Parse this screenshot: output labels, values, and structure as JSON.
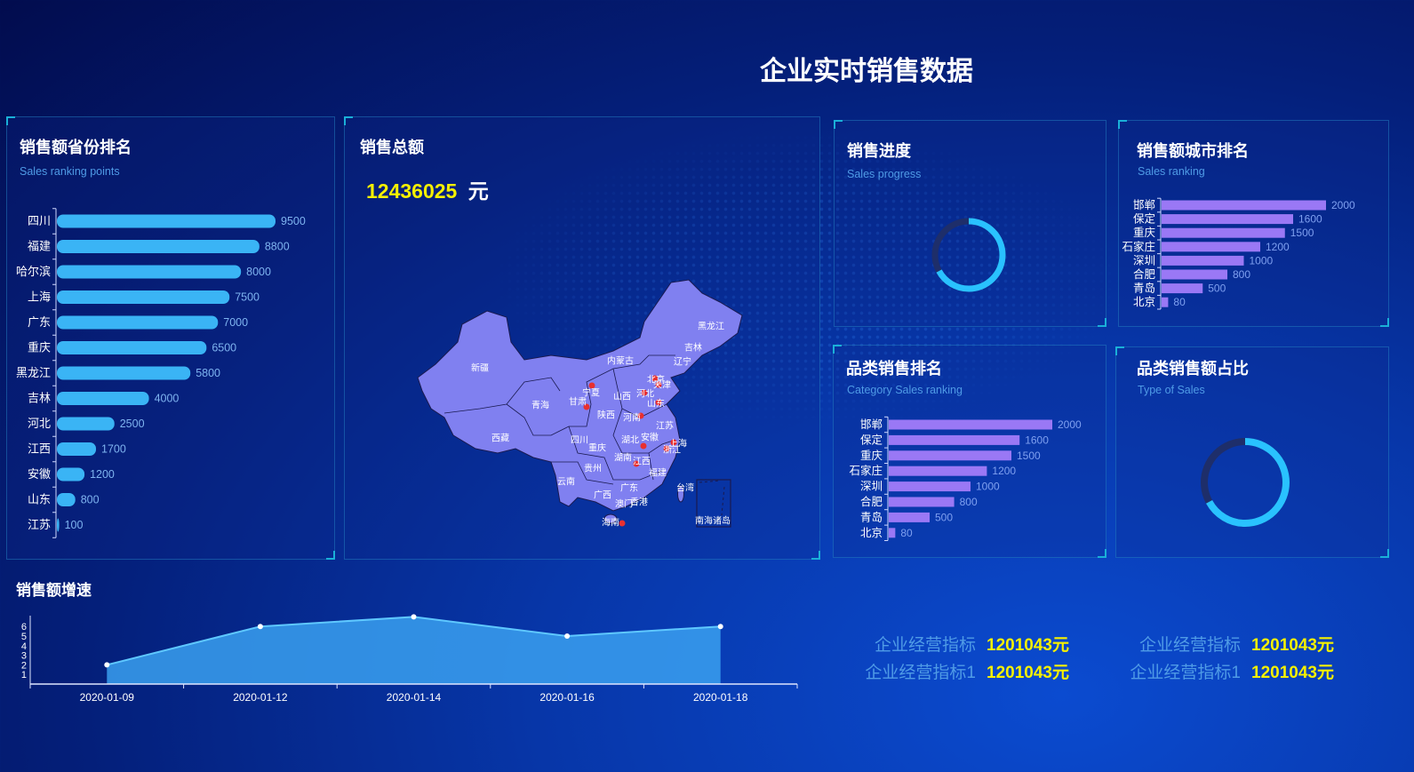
{
  "header": {
    "title": "企业实时销售数据"
  },
  "province_ranking": {
    "title": "销售额省份排名",
    "subtitle": "Sales ranking points",
    "chart_data": {
      "type": "bar",
      "orientation": "horizontal",
      "categories": [
        "四川",
        "福建",
        "哈尔滨",
        "上海",
        "广东",
        "重庆",
        "黑龙江",
        "吉林",
        "河北",
        "江西",
        "安徽",
        "山东",
        "江苏"
      ],
      "values": [
        9500,
        8800,
        8000,
        7500,
        7000,
        6500,
        5800,
        4000,
        2500,
        1700,
        1200,
        800,
        100
      ],
      "color": "#3ab4f5"
    }
  },
  "total_sales": {
    "title": "销售总额",
    "value": "12436025",
    "unit": "元",
    "map_labels": [
      "新疆",
      "西藏",
      "青海",
      "甘肃",
      "宁夏",
      "内蒙古",
      "山西",
      "陕西",
      "四川",
      "重庆",
      "云南",
      "贵州",
      "广西",
      "广东",
      "香港",
      "澳门",
      "海南",
      "湖南",
      "湖北",
      "河南",
      "河北",
      "北京",
      "天津",
      "山东",
      "江苏",
      "安徽",
      "上海",
      "浙江",
      "江西",
      "福建",
      "台湾",
      "辽宁",
      "吉林",
      "黑龙江",
      "南海诸岛"
    ],
    "map_fill": "#8080f0",
    "marker_color": "#e83030"
  },
  "sales_progress": {
    "title": "销售进度",
    "subtitle": "Sales progress",
    "chart_data": {
      "type": "pie",
      "variant": "donut",
      "value": 0.67,
      "color": "#29c2ff",
      "track": "#1e2e6a"
    }
  },
  "city_ranking": {
    "title": "销售额城市排名",
    "subtitle": "Sales ranking",
    "chart_data": {
      "type": "bar",
      "orientation": "horizontal",
      "categories": [
        "邯郸",
        "保定",
        "重庆",
        "石家庄",
        "深圳",
        "合肥",
        "青岛",
        "北京"
      ],
      "values": [
        2000,
        1600,
        1500,
        1200,
        1000,
        800,
        500,
        80
      ],
      "color": "#9a78f5"
    }
  },
  "category_ranking": {
    "title": "品类销售排名",
    "subtitle": "Category Sales  ranking",
    "chart_data": {
      "type": "bar",
      "orientation": "horizontal",
      "categories": [
        "邯郸",
        "保定",
        "重庆",
        "石家庄",
        "深圳",
        "合肥",
        "青岛",
        "北京"
      ],
      "values": [
        2000,
        1600,
        1500,
        1200,
        1000,
        800,
        500,
        80
      ],
      "color": "#9a78f5"
    }
  },
  "type_share": {
    "title": "品类销售额占比",
    "subtitle": "Type of Sales",
    "chart_data": {
      "type": "pie",
      "variant": "donut",
      "value": 0.67,
      "color": "#29c2ff",
      "track": "#1e2e6a"
    }
  },
  "growth": {
    "title": "销售额增速",
    "chart_data": {
      "type": "area",
      "categories": [
        "2020-01-09",
        "2020-01-12",
        "2020-01-14",
        "2020-01-16",
        "2020-01-18"
      ],
      "values": [
        2,
        6,
        7,
        5,
        6
      ],
      "yticks": [
        1,
        2,
        3,
        4,
        5,
        6
      ],
      "color": "#3aa0f0"
    }
  },
  "indicators": [
    {
      "label": "企业经营指标",
      "value": "1201043元"
    },
    {
      "label": "企业经营指标",
      "value": "1201043元"
    },
    {
      "label": "企业经营指标1",
      "value": "1201043元"
    },
    {
      "label": "企业经营指标1",
      "value": "1201043元"
    }
  ]
}
